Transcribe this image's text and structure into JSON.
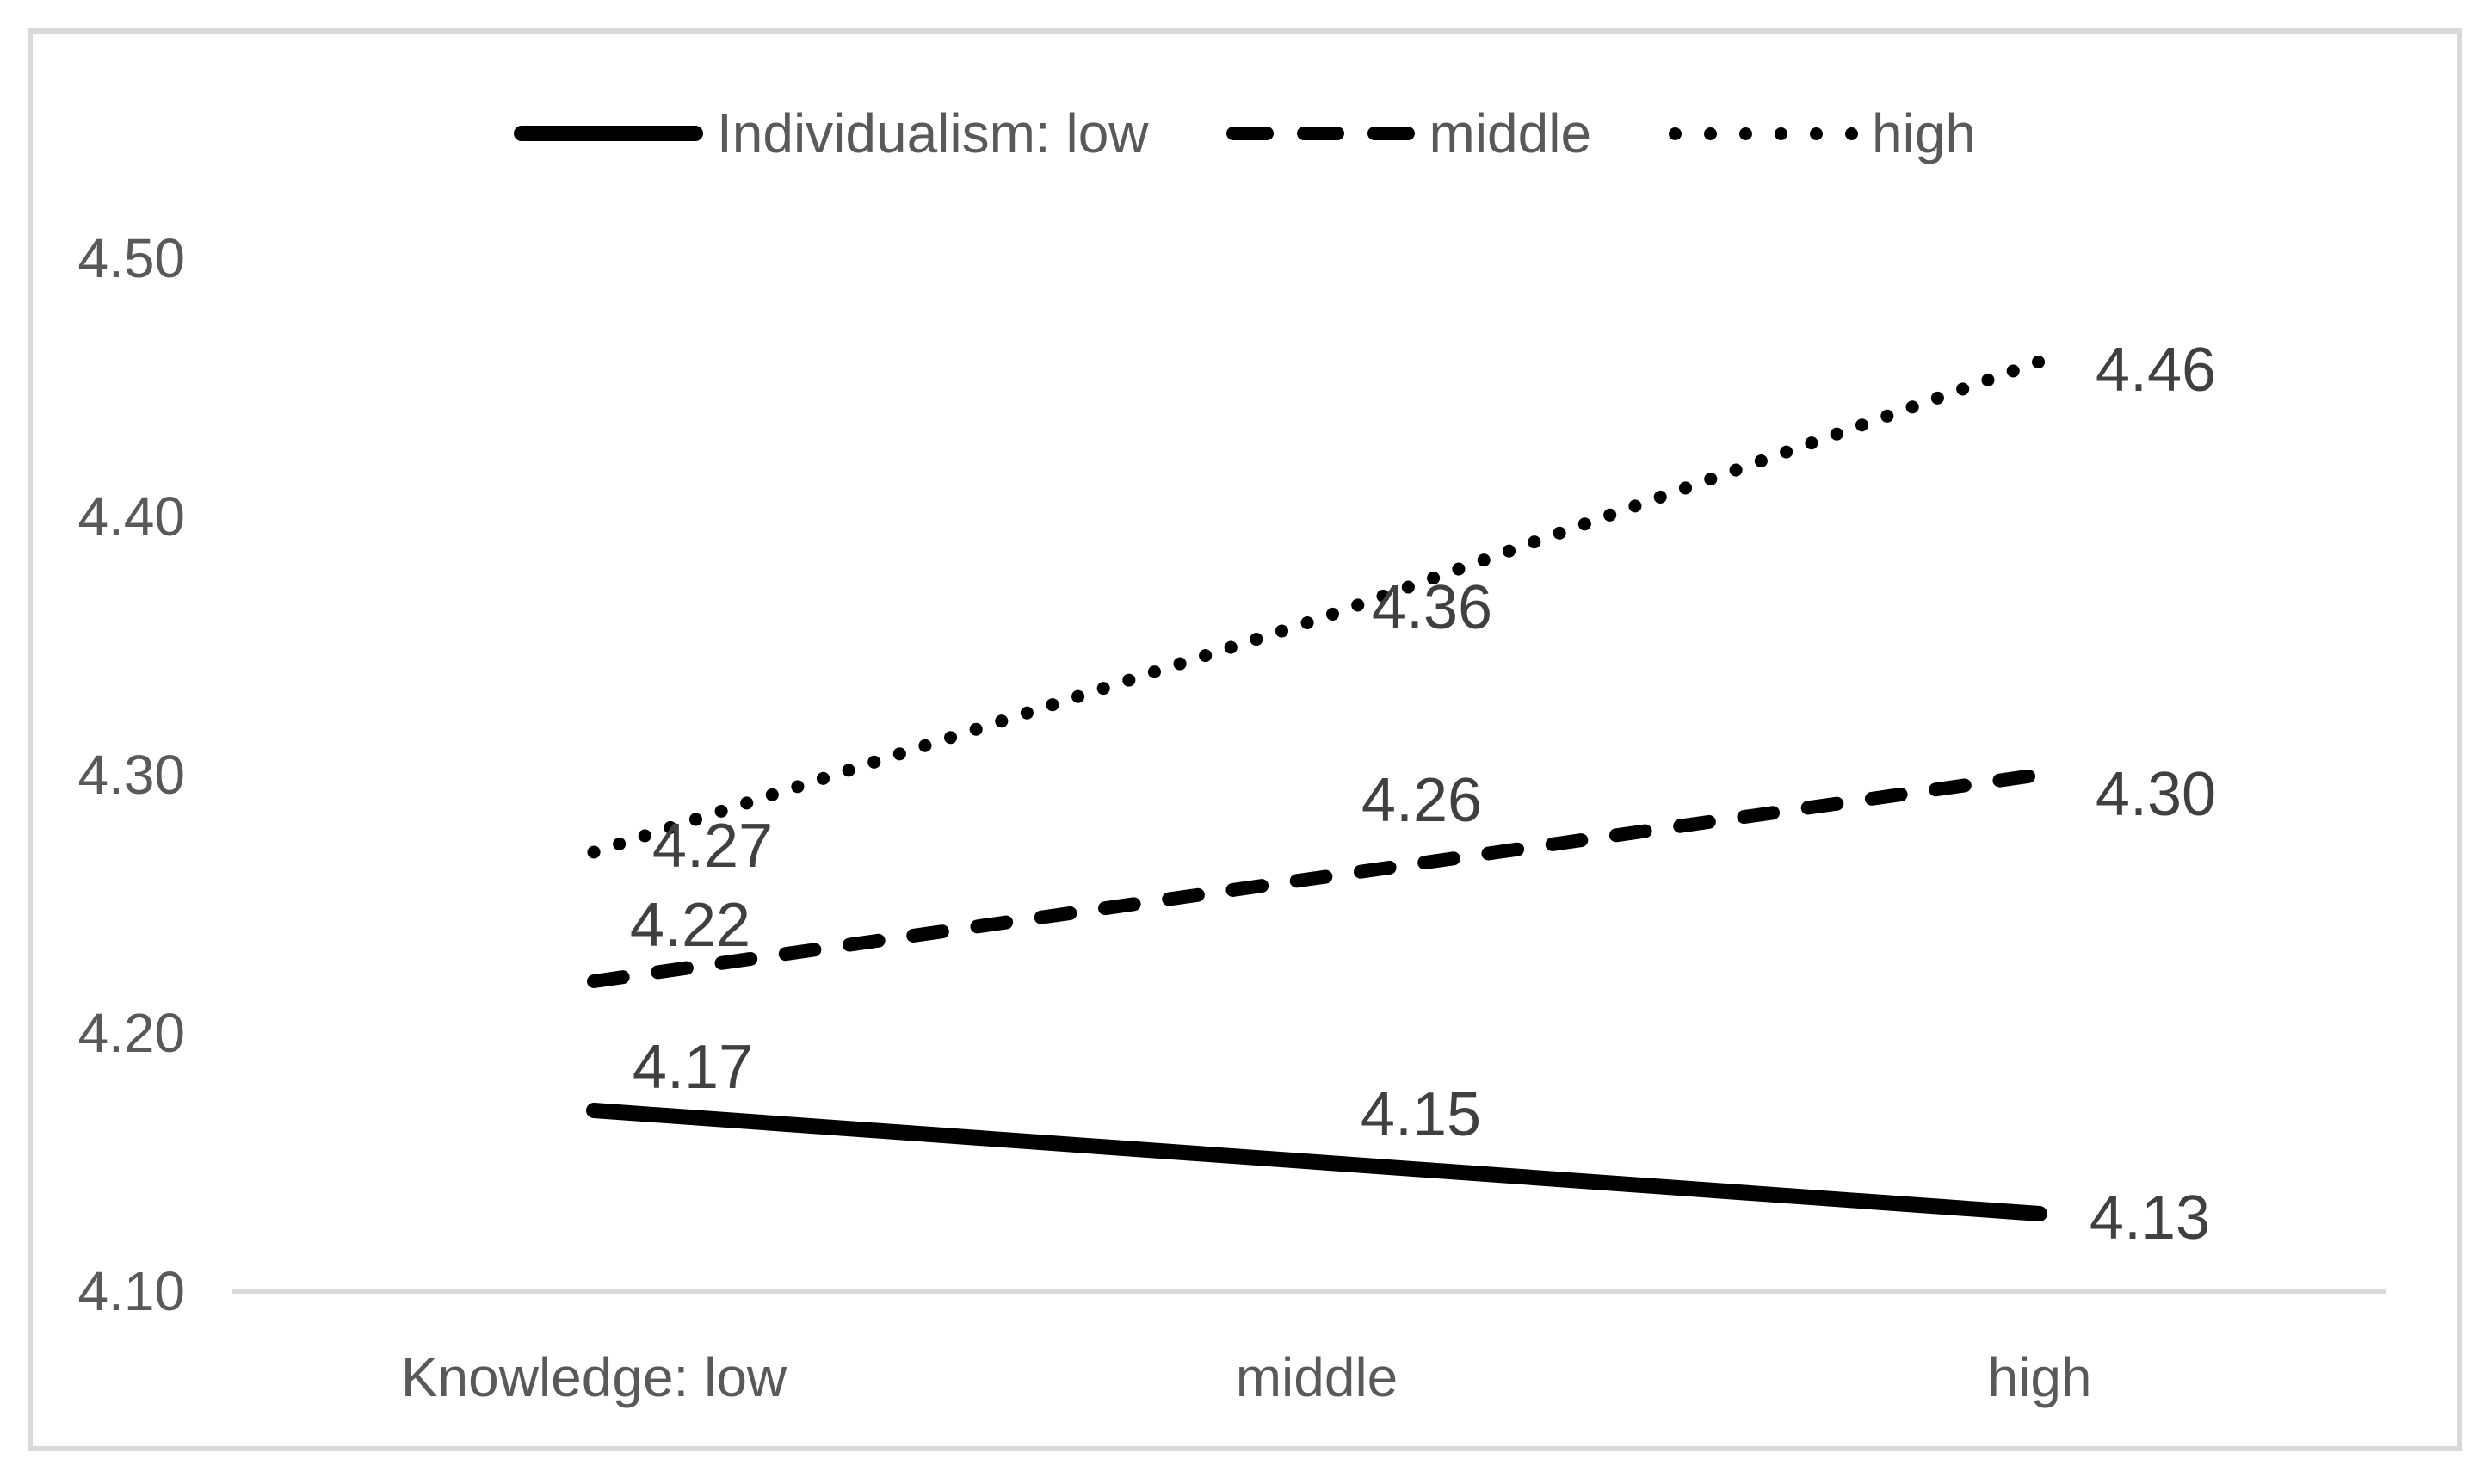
{
  "chart_data": {
    "type": "line",
    "title": "",
    "categories": [
      "Knowledge: low",
      "middle",
      "high"
    ],
    "series": [
      {
        "name": "Individualism: low",
        "line_style": "solid",
        "values": [
          4.17,
          4.15,
          4.13
        ],
        "labels": [
          "4.17",
          "4.15",
          "4.13"
        ]
      },
      {
        "name": "middle",
        "line_style": "dashed",
        "values": [
          4.22,
          4.26,
          4.3
        ],
        "labels": [
          "4.22",
          "4.26",
          "4.30"
        ]
      },
      {
        "name": "high",
        "line_style": "dotted",
        "values": [
          4.27,
          4.36,
          4.46
        ],
        "labels": [
          "4.27",
          "4.36",
          "4.46"
        ]
      }
    ],
    "y_axis": {
      "min": 4.1,
      "max": 4.5,
      "tick_step": 0.1,
      "ticks": [
        "4.50",
        "4.40",
        "4.30",
        "4.20",
        "4.10"
      ],
      "tick_values": [
        4.5,
        4.4,
        4.3,
        4.2,
        4.1
      ]
    },
    "legend_position": "top",
    "gridlines": "bottom axis line only",
    "colors": {
      "series_line": "#000000",
      "data_label_text": "#404040",
      "axis_text": "#595959",
      "axis_line": "#d9d9d9",
      "frame_border": "#d9d9d9",
      "background": "#ffffff"
    }
  }
}
